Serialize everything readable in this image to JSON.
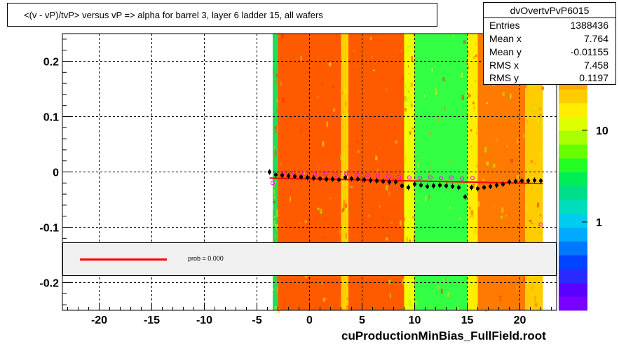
{
  "title": "<(v - vP)/tvP>  versus   vP => alpha for barrel 3, layer 6 ladder 15, all wafers",
  "footer": "cuProductionMinBias_FullField.root",
  "stats": {
    "name": "dvOvertvPvP6015",
    "rows": [
      {
        "label": "Entries",
        "value": "1388436"
      },
      {
        "label": "Mean x",
        "value": "7.764"
      },
      {
        "label": "Mean y",
        "value": "-0.01155"
      },
      {
        "label": "RMS x",
        "value": "7.458"
      },
      {
        "label": "RMS y",
        "value": "0.1197"
      }
    ]
  },
  "legend": {
    "fit_label": "prob = 0.000",
    "fit_color": "#ff0000"
  },
  "chart_data": {
    "type": "heatmap",
    "xlim": [
      -23.5,
      23.5
    ],
    "ylim": [
      -0.25,
      0.25
    ],
    "x_ticks": [
      -20,
      -15,
      -10,
      -5,
      0,
      5,
      10,
      15,
      20
    ],
    "y_ticks": [
      -0.2,
      -0.1,
      0,
      0.1,
      0.2
    ],
    "grid": true,
    "color_scale": {
      "type": "log",
      "tick_labels": [
        "1",
        "10"
      ],
      "tick_values": [
        1,
        10
      ]
    },
    "column_bands": [
      {
        "x0": -3.5,
        "x1": -3.0,
        "color": "#22dd55"
      },
      {
        "x0": -3.0,
        "x1": 3.0,
        "color": "#ff5a00"
      },
      {
        "x0": 3.0,
        "x1": 3.7,
        "color": "#ffd000"
      },
      {
        "x0": 3.7,
        "x1": 9.0,
        "color": "#ff5a00"
      },
      {
        "x0": 9.0,
        "x1": 10.0,
        "color": "#eeff00"
      },
      {
        "x0": 10.0,
        "x1": 15.0,
        "color": "#33ff44"
      },
      {
        "x0": 15.0,
        "x1": 16.0,
        "color": "#ffee00"
      },
      {
        "x0": 16.0,
        "x1": 20.5,
        "color": "#ff7a00"
      },
      {
        "x0": 20.5,
        "x1": 22.2,
        "color": "#ffcc00"
      }
    ],
    "series": [
      {
        "name": "mean profile",
        "x": [
          -3.8,
          -3.2,
          -2.6,
          -2.0,
          -1.4,
          -0.8,
          -0.2,
          0.4,
          1.0,
          1.6,
          2.2,
          2.8,
          3.4,
          4.0,
          4.6,
          5.2,
          5.8,
          6.4,
          7.0,
          7.6,
          8.2,
          8.8,
          9.4,
          10.0,
          10.6,
          11.2,
          11.8,
          12.4,
          13.0,
          13.6,
          14.2,
          14.8,
          15.4,
          16.0,
          16.6,
          17.2,
          17.8,
          18.4,
          19.0,
          19.6,
          20.2,
          20.8,
          21.4,
          22.0
        ],
        "y": [
          0.0,
          -0.005,
          -0.006,
          -0.007,
          -0.008,
          -0.009,
          -0.01,
          -0.011,
          -0.012,
          -0.013,
          -0.013,
          -0.014,
          -0.01,
          -0.012,
          -0.013,
          -0.014,
          -0.015,
          -0.016,
          -0.017,
          -0.018,
          -0.018,
          -0.025,
          -0.028,
          -0.022,
          -0.024,
          -0.026,
          -0.025,
          -0.024,
          -0.025,
          -0.026,
          -0.028,
          -0.045,
          -0.028,
          -0.03,
          -0.028,
          -0.026,
          -0.024,
          -0.022,
          -0.018,
          -0.017,
          -0.016,
          -0.016,
          -0.015,
          -0.016
        ]
      },
      {
        "name": "open markers",
        "x": [
          -3.5,
          -2.5,
          -1.5,
          -0.5,
          0.5,
          1.5,
          2.5,
          3.5,
          4.5,
          5.5,
          6.5,
          7.5,
          8.5,
          9.5,
          10.5,
          11.5,
          12.5,
          13.5,
          14.5,
          15.5,
          22.0
        ],
        "y": [
          -0.02,
          -0.003,
          -0.002,
          -0.003,
          -0.004,
          -0.004,
          -0.005,
          -0.004,
          -0.005,
          -0.006,
          -0.007,
          -0.008,
          -0.009,
          -0.01,
          -0.011,
          -0.01,
          -0.011,
          -0.01,
          -0.012,
          -0.011,
          -0.095
        ]
      },
      {
        "name": "fit",
        "x": [
          -3.8,
          22.2
        ],
        "y": [
          -0.011,
          -0.021
        ]
      }
    ]
  }
}
